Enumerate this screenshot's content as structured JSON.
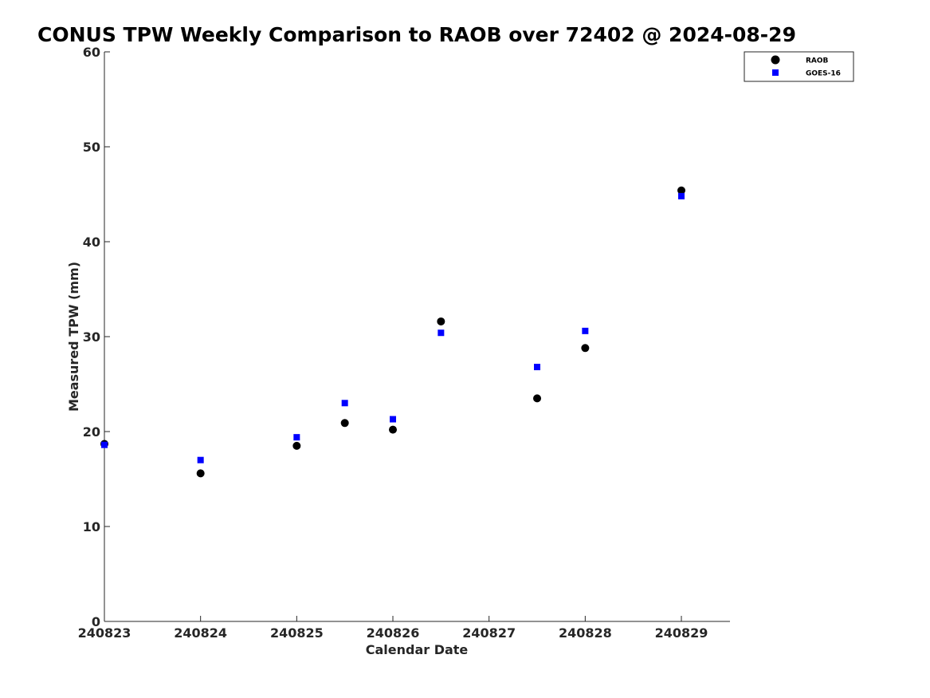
{
  "chart_data": {
    "type": "scatter",
    "title": "CONUS TPW Weekly Comparison to RAOB over 72402 @ 2024-08-29",
    "xlabel": "Calendar Date",
    "ylabel": "Measured TPW (mm)",
    "x_tick_labels": [
      "240823",
      "240824",
      "240825",
      "240826",
      "240827",
      "240828",
      "240829"
    ],
    "y_tick_labels": [
      "0",
      "10",
      "20",
      "30",
      "40",
      "50",
      "60"
    ],
    "ylim": [
      0,
      60
    ],
    "x_range_days": [
      "2024-08-23",
      "2024-08-29 12:00"
    ],
    "grid": false,
    "legend_position": "top-right outside",
    "series": [
      {
        "name": "RAOB",
        "marker": "circle",
        "color": "#000000",
        "points": [
          {
            "x": "2024-08-23 00:00",
            "y": 18.7
          },
          {
            "x": "2024-08-24 00:00",
            "y": 15.6
          },
          {
            "x": "2024-08-25 00:00",
            "y": 18.5
          },
          {
            "x": "2024-08-25 12:00",
            "y": 20.9
          },
          {
            "x": "2024-08-26 00:00",
            "y": 20.2
          },
          {
            "x": "2024-08-26 12:00",
            "y": 31.6
          },
          {
            "x": "2024-08-27 12:00",
            "y": 23.5
          },
          {
            "x": "2024-08-28 00:00",
            "y": 28.8
          },
          {
            "x": "2024-08-29 00:00",
            "y": 45.4
          }
        ]
      },
      {
        "name": "GOES-16",
        "marker": "square",
        "color": "#0000ff",
        "points": [
          {
            "x": "2024-08-23 00:00",
            "y": 18.6
          },
          {
            "x": "2024-08-24 00:00",
            "y": 17.0
          },
          {
            "x": "2024-08-25 00:00",
            "y": 19.4
          },
          {
            "x": "2024-08-25 12:00",
            "y": 23.0
          },
          {
            "x": "2024-08-26 00:00",
            "y": 21.3
          },
          {
            "x": "2024-08-26 12:00",
            "y": 30.4
          },
          {
            "x": "2024-08-27 12:00",
            "y": 26.8
          },
          {
            "x": "2024-08-28 00:00",
            "y": 30.6
          },
          {
            "x": "2024-08-29 00:00",
            "y": 44.8
          }
        ]
      }
    ]
  }
}
